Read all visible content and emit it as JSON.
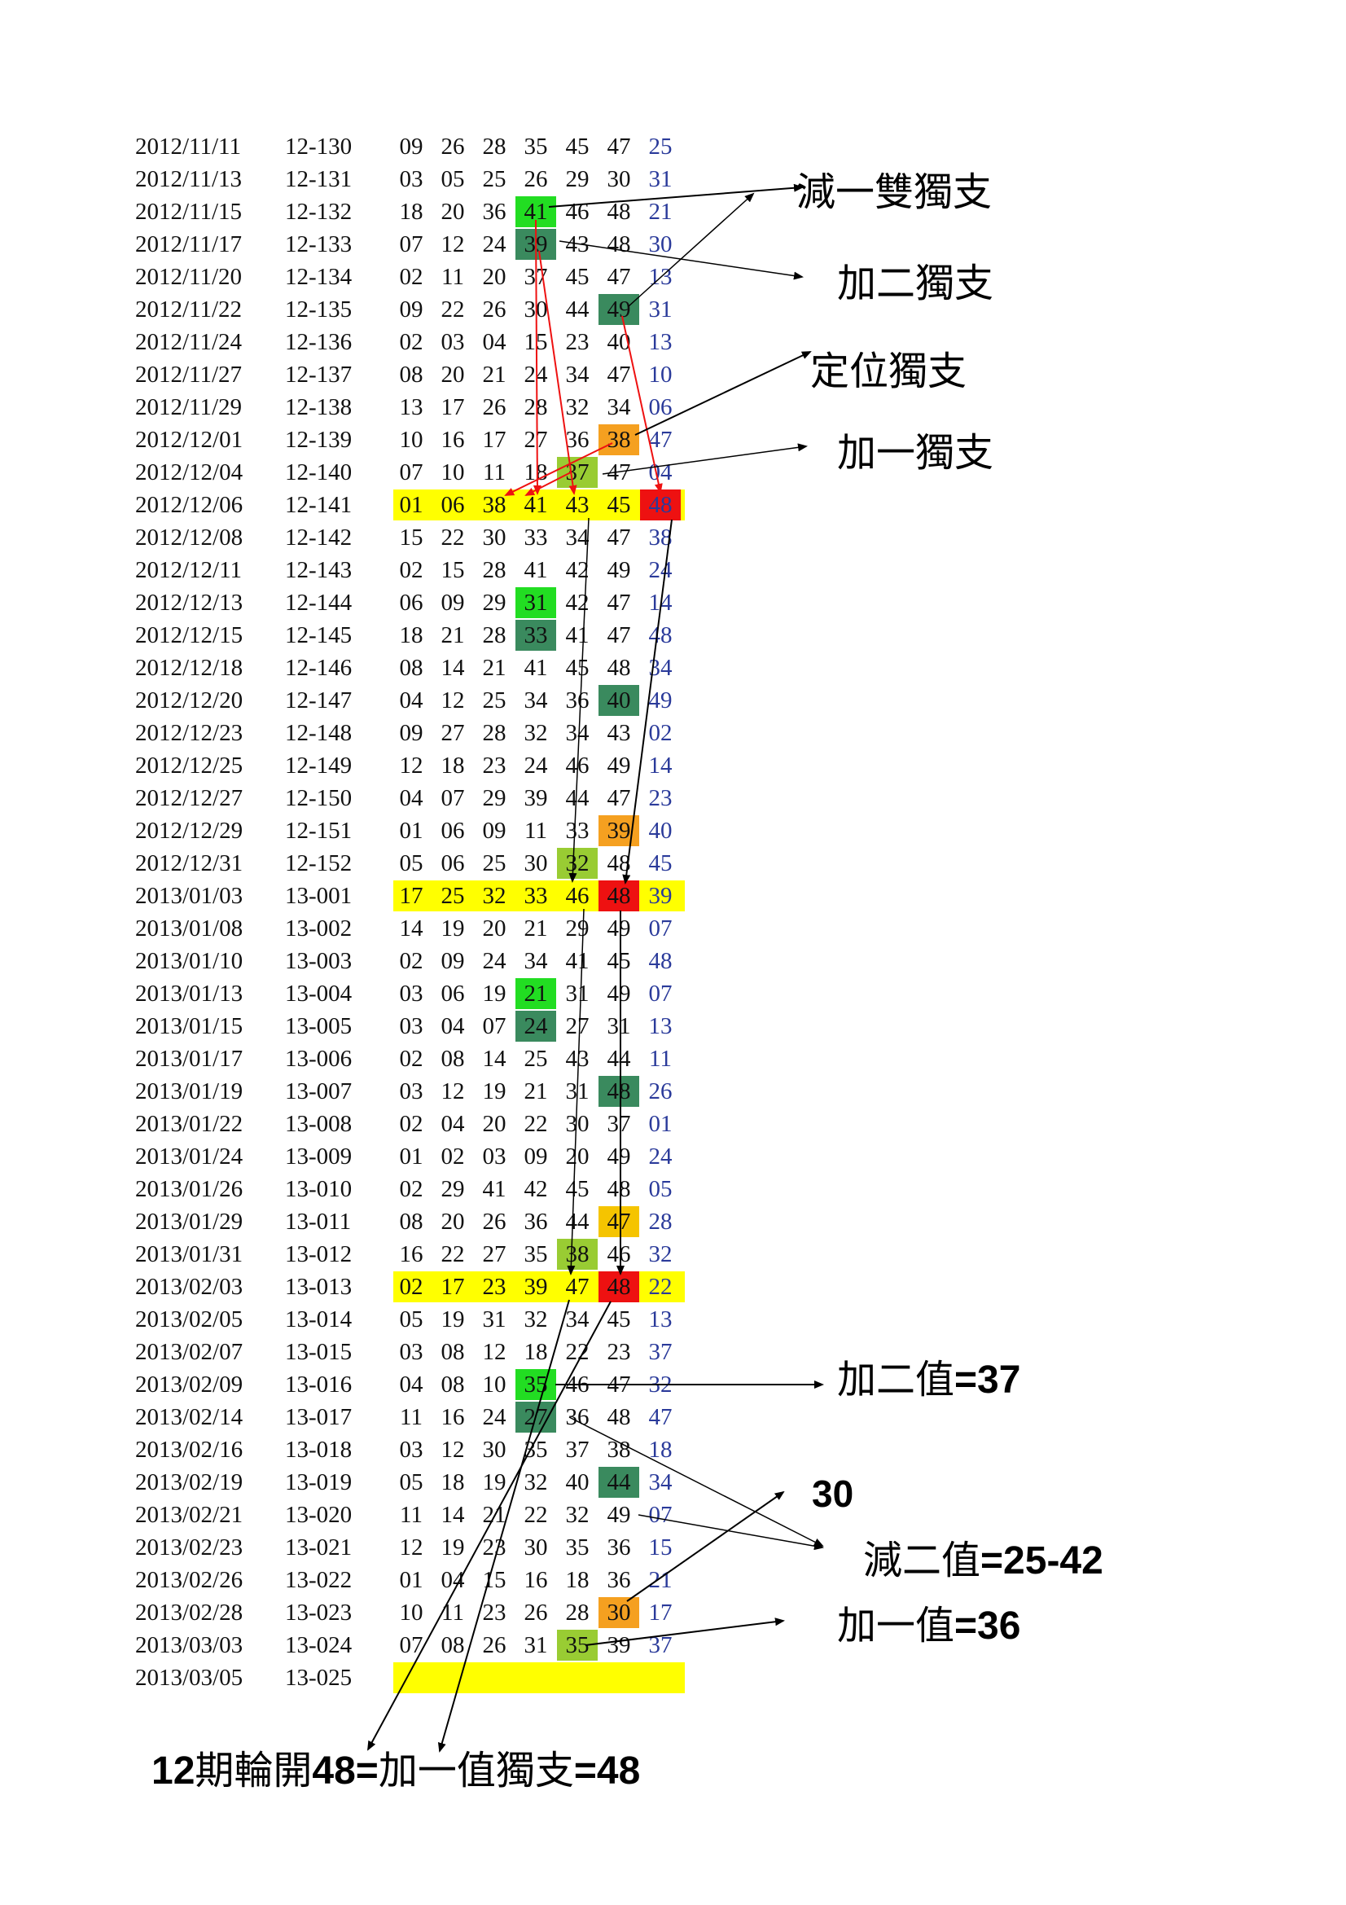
{
  "colors": {
    "row_highlight": "#ffff00",
    "bright_green": "#22dd22",
    "dark_green": "#3a8a5e",
    "yellow_green": "#99cc33",
    "orange": "#f5a020",
    "amber": "#f5c400",
    "red": "#ee1111",
    "special_number": "#2a3a9a",
    "red_arrow": "#ee1111",
    "black_arrow": "#000000"
  },
  "rows": [
    {
      "date": "2012/11/11",
      "period": "12-130",
      "nums": [
        "09",
        "26",
        "28",
        "35",
        "45",
        "47",
        "25"
      ],
      "row_hl": false,
      "cells": {}
    },
    {
      "date": "2012/11/13",
      "period": "12-131",
      "nums": [
        "03",
        "05",
        "25",
        "26",
        "29",
        "30",
        "31"
      ],
      "row_hl": false,
      "cells": {}
    },
    {
      "date": "2012/11/15",
      "period": "12-132",
      "nums": [
        "18",
        "20",
        "36",
        "41",
        "46",
        "48",
        "21"
      ],
      "row_hl": false,
      "cells": {
        "3": "bright_green"
      }
    },
    {
      "date": "2012/11/17",
      "period": "12-133",
      "nums": [
        "07",
        "12",
        "24",
        "39",
        "43",
        "48",
        "30"
      ],
      "row_hl": false,
      "cells": {
        "3": "dark_green"
      }
    },
    {
      "date": "2012/11/20",
      "period": "12-134",
      "nums": [
        "02",
        "11",
        "20",
        "37",
        "45",
        "47",
        "13"
      ],
      "row_hl": false,
      "cells": {}
    },
    {
      "date": "2012/11/22",
      "period": "12-135",
      "nums": [
        "09",
        "22",
        "26",
        "30",
        "44",
        "49",
        "31"
      ],
      "row_hl": false,
      "cells": {
        "5": "dark_green"
      }
    },
    {
      "date": "2012/11/24",
      "period": "12-136",
      "nums": [
        "02",
        "03",
        "04",
        "15",
        "23",
        "40",
        "13"
      ],
      "row_hl": false,
      "cells": {}
    },
    {
      "date": "2012/11/27",
      "period": "12-137",
      "nums": [
        "08",
        "20",
        "21",
        "24",
        "34",
        "47",
        "10"
      ],
      "row_hl": false,
      "cells": {}
    },
    {
      "date": "2012/11/29",
      "period": "12-138",
      "nums": [
        "13",
        "17",
        "26",
        "28",
        "32",
        "34",
        "06"
      ],
      "row_hl": false,
      "cells": {}
    },
    {
      "date": "2012/12/01",
      "period": "12-139",
      "nums": [
        "10",
        "16",
        "17",
        "27",
        "36",
        "38",
        "47"
      ],
      "row_hl": false,
      "cells": {
        "5": "orange"
      }
    },
    {
      "date": "2012/12/04",
      "period": "12-140",
      "nums": [
        "07",
        "10",
        "11",
        "18",
        "37",
        "47",
        "04"
      ],
      "row_hl": false,
      "cells": {
        "4": "yellow_green"
      }
    },
    {
      "date": "2012/12/06",
      "period": "12-141",
      "nums": [
        "01",
        "06",
        "38",
        "41",
        "43",
        "45",
        "48"
      ],
      "row_hl": true,
      "cells": {
        "6": "red"
      }
    },
    {
      "date": "2012/12/08",
      "period": "12-142",
      "nums": [
        "15",
        "22",
        "30",
        "33",
        "34",
        "47",
        "38"
      ],
      "row_hl": false,
      "cells": {}
    },
    {
      "date": "2012/12/11",
      "period": "12-143",
      "nums": [
        "02",
        "15",
        "28",
        "41",
        "42",
        "49",
        "24"
      ],
      "row_hl": false,
      "cells": {}
    },
    {
      "date": "2012/12/13",
      "period": "12-144",
      "nums": [
        "06",
        "09",
        "29",
        "31",
        "42",
        "47",
        "14"
      ],
      "row_hl": false,
      "cells": {
        "3": "bright_green"
      }
    },
    {
      "date": "2012/12/15",
      "period": "12-145",
      "nums": [
        "18",
        "21",
        "28",
        "33",
        "41",
        "47",
        "48"
      ],
      "row_hl": false,
      "cells": {
        "3": "dark_green"
      }
    },
    {
      "date": "2012/12/18",
      "period": "12-146",
      "nums": [
        "08",
        "14",
        "21",
        "41",
        "45",
        "48",
        "34"
      ],
      "row_hl": false,
      "cells": {}
    },
    {
      "date": "2012/12/20",
      "period": "12-147",
      "nums": [
        "04",
        "12",
        "25",
        "34",
        "36",
        "40",
        "49"
      ],
      "row_hl": false,
      "cells": {
        "5": "dark_green"
      }
    },
    {
      "date": "2012/12/23",
      "period": "12-148",
      "nums": [
        "09",
        "27",
        "28",
        "32",
        "34",
        "43",
        "02"
      ],
      "row_hl": false,
      "cells": {}
    },
    {
      "date": "2012/12/25",
      "period": "12-149",
      "nums": [
        "12",
        "18",
        "23",
        "24",
        "46",
        "49",
        "14"
      ],
      "row_hl": false,
      "cells": {}
    },
    {
      "date": "2012/12/27",
      "period": "12-150",
      "nums": [
        "04",
        "07",
        "29",
        "39",
        "44",
        "47",
        "23"
      ],
      "row_hl": false,
      "cells": {}
    },
    {
      "date": "2012/12/29",
      "period": "12-151",
      "nums": [
        "01",
        "06",
        "09",
        "11",
        "33",
        "39",
        "40"
      ],
      "row_hl": false,
      "cells": {
        "5": "orange"
      }
    },
    {
      "date": "2012/12/31",
      "period": "12-152",
      "nums": [
        "05",
        "06",
        "25",
        "30",
        "32",
        "48",
        "45"
      ],
      "row_hl": false,
      "cells": {
        "4": "yellow_green"
      }
    },
    {
      "date": "2013/01/03",
      "period": "13-001",
      "nums": [
        "17",
        "25",
        "32",
        "33",
        "46",
        "48",
        "39"
      ],
      "row_hl": true,
      "cells": {
        "5": "red"
      }
    },
    {
      "date": "2013/01/08",
      "period": "13-002",
      "nums": [
        "14",
        "19",
        "20",
        "21",
        "29",
        "49",
        "07"
      ],
      "row_hl": false,
      "cells": {}
    },
    {
      "date": "2013/01/10",
      "period": "13-003",
      "nums": [
        "02",
        "09",
        "24",
        "34",
        "41",
        "45",
        "48"
      ],
      "row_hl": false,
      "cells": {}
    },
    {
      "date": "2013/01/13",
      "period": "13-004",
      "nums": [
        "03",
        "06",
        "19",
        "21",
        "31",
        "49",
        "07"
      ],
      "row_hl": false,
      "cells": {
        "3": "bright_green"
      }
    },
    {
      "date": "2013/01/15",
      "period": "13-005",
      "nums": [
        "03",
        "04",
        "07",
        "24",
        "27",
        "31",
        "13"
      ],
      "row_hl": false,
      "cells": {
        "3": "dark_green"
      }
    },
    {
      "date": "2013/01/17",
      "period": "13-006",
      "nums": [
        "02",
        "08",
        "14",
        "25",
        "43",
        "44",
        "11"
      ],
      "row_hl": false,
      "cells": {}
    },
    {
      "date": "2013/01/19",
      "period": "13-007",
      "nums": [
        "03",
        "12",
        "19",
        "21",
        "31",
        "48",
        "26"
      ],
      "row_hl": false,
      "cells": {
        "5": "dark_green"
      }
    },
    {
      "date": "2013/01/22",
      "period": "13-008",
      "nums": [
        "02",
        "04",
        "20",
        "22",
        "30",
        "37",
        "01"
      ],
      "row_hl": false,
      "cells": {}
    },
    {
      "date": "2013/01/24",
      "period": "13-009",
      "nums": [
        "01",
        "02",
        "03",
        "09",
        "20",
        "49",
        "24"
      ],
      "row_hl": false,
      "cells": {}
    },
    {
      "date": "2013/01/26",
      "period": "13-010",
      "nums": [
        "02",
        "29",
        "41",
        "42",
        "45",
        "48",
        "05"
      ],
      "row_hl": false,
      "cells": {}
    },
    {
      "date": "2013/01/29",
      "period": "13-011",
      "nums": [
        "08",
        "20",
        "26",
        "36",
        "44",
        "47",
        "28"
      ],
      "row_hl": false,
      "cells": {
        "5": "amber"
      }
    },
    {
      "date": "2013/01/31",
      "period": "13-012",
      "nums": [
        "16",
        "22",
        "27",
        "35",
        "38",
        "46",
        "32"
      ],
      "row_hl": false,
      "cells": {
        "4": "yellow_green"
      }
    },
    {
      "date": "2013/02/03",
      "period": "13-013",
      "nums": [
        "02",
        "17",
        "23",
        "39",
        "47",
        "48",
        "22"
      ],
      "row_hl": true,
      "cells": {
        "5": "red"
      }
    },
    {
      "date": "2013/02/05",
      "period": "13-014",
      "nums": [
        "05",
        "19",
        "31",
        "32",
        "34",
        "45",
        "13"
      ],
      "row_hl": false,
      "cells": {}
    },
    {
      "date": "2013/02/07",
      "period": "13-015",
      "nums": [
        "03",
        "08",
        "12",
        "18",
        "22",
        "23",
        "37"
      ],
      "row_hl": false,
      "cells": {}
    },
    {
      "date": "2013/02/09",
      "period": "13-016",
      "nums": [
        "04",
        "08",
        "10",
        "35",
        "46",
        "47",
        "32"
      ],
      "row_hl": false,
      "cells": {
        "3": "bright_green"
      }
    },
    {
      "date": "2013/02/14",
      "period": "13-017",
      "nums": [
        "11",
        "16",
        "24",
        "27",
        "36",
        "48",
        "47"
      ],
      "row_hl": false,
      "cells": {
        "3": "dark_green"
      }
    },
    {
      "date": "2013/02/16",
      "period": "13-018",
      "nums": [
        "03",
        "12",
        "30",
        "35",
        "37",
        "38",
        "18"
      ],
      "row_hl": false,
      "cells": {}
    },
    {
      "date": "2013/02/19",
      "period": "13-019",
      "nums": [
        "05",
        "18",
        "19",
        "32",
        "40",
        "44",
        "34"
      ],
      "row_hl": false,
      "cells": {
        "5": "dark_green"
      }
    },
    {
      "date": "2013/02/21",
      "period": "13-020",
      "nums": [
        "11",
        "14",
        "21",
        "22",
        "32",
        "49",
        "07"
      ],
      "row_hl": false,
      "cells": {}
    },
    {
      "date": "2013/02/23",
      "period": "13-021",
      "nums": [
        "12",
        "19",
        "23",
        "30",
        "35",
        "36",
        "15"
      ],
      "row_hl": false,
      "cells": {}
    },
    {
      "date": "2013/02/26",
      "period": "13-022",
      "nums": [
        "01",
        "04",
        "15",
        "16",
        "18",
        "36",
        "21"
      ],
      "row_hl": false,
      "cells": {}
    },
    {
      "date": "2013/02/28",
      "period": "13-023",
      "nums": [
        "10",
        "11",
        "23",
        "26",
        "28",
        "30",
        "17"
      ],
      "row_hl": false,
      "cells": {
        "5": "orange"
      }
    },
    {
      "date": "2013/03/03",
      "period": "13-024",
      "nums": [
        "07",
        "08",
        "26",
        "31",
        "35",
        "39",
        "37"
      ],
      "row_hl": false,
      "cells": {
        "4": "yellow_green"
      }
    },
    {
      "date": "2013/03/05",
      "period": "13-025",
      "nums": [
        "",
        "",
        "",
        "",
        "",
        "",
        ""
      ],
      "row_hl": true,
      "cells": {}
    }
  ],
  "labels": {
    "minus_one_double": "減一雙獨支",
    "plus_two": "加二獨支",
    "position": "定位獨支",
    "plus_one": "加一獨支",
    "plus_two_value_prefix": "加二值",
    "plus_two_value_suffix": "=37",
    "thirty": "30",
    "minus_two_value_prefix": "減二值",
    "minus_two_value_suffix": "=25-42",
    "plus_one_value_prefix": "加一值",
    "plus_one_value_suffix": "=36",
    "footer_part1": "12",
    "footer_part2": "期輪開",
    "footer_part3": "48=",
    "footer_part4": "加一值獨支",
    "footer_part5": "=48"
  }
}
